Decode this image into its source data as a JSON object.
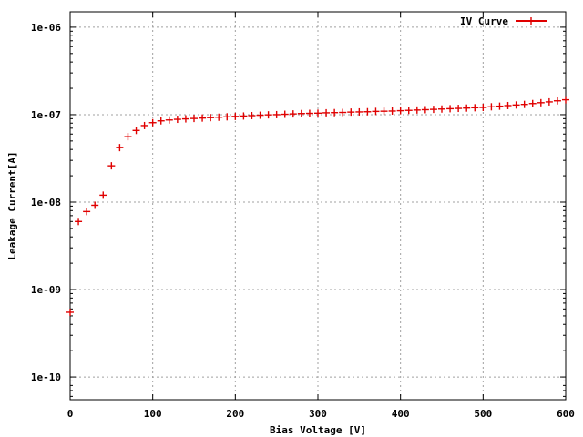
{
  "chart_data": {
    "type": "scatter",
    "xlabel": "Bias Voltage [V]",
    "ylabel": "Leakage Current[A]",
    "x_ticks": [
      "0",
      "100",
      "200",
      "300",
      "400",
      "500",
      "600"
    ],
    "y_ticks": [
      "1e-10",
      "1e-09",
      "1e-08",
      "1e-07",
      "1e-06"
    ],
    "xlim": [
      0,
      600
    ],
    "ylim": [
      5.5e-11,
      1.5e-06
    ],
    "yscale": "log",
    "grid": true,
    "legend_position": "top-right",
    "colors": {
      "series": "#e00000",
      "grid": "#a0a0a0",
      "axis": "#000000"
    },
    "series": [
      {
        "name": "IV Curve",
        "x": [
          0,
          10,
          20,
          30,
          40,
          50,
          60,
          70,
          80,
          90,
          100,
          110,
          120,
          130,
          140,
          150,
          160,
          170,
          180,
          190,
          200,
          210,
          220,
          230,
          240,
          250,
          260,
          270,
          280,
          290,
          300,
          310,
          320,
          330,
          340,
          350,
          360,
          370,
          380,
          390,
          400,
          410,
          420,
          430,
          440,
          450,
          460,
          470,
          480,
          490,
          500,
          510,
          520,
          530,
          540,
          550,
          560,
          570,
          580,
          590,
          600
        ],
        "y": [
          5.5e-10,
          6e-09,
          7.8e-09,
          9.2e-09,
          1.2e-08,
          2.6e-08,
          4.2e-08,
          5.6e-08,
          6.6e-08,
          7.5e-08,
          8.1e-08,
          8.5e-08,
          8.7e-08,
          8.85e-08,
          8.95e-08,
          9.05e-08,
          9.15e-08,
          9.25e-08,
          9.35e-08,
          9.45e-08,
          9.55e-08,
          9.65e-08,
          9.75e-08,
          9.85e-08,
          9.95e-08,
          1e-07,
          1.01e-07,
          1.02e-07,
          1.03e-07,
          1.035e-07,
          1.04e-07,
          1.05e-07,
          1.055e-07,
          1.06e-07,
          1.07e-07,
          1.075e-07,
          1.08e-07,
          1.09e-07,
          1.095e-07,
          1.1e-07,
          1.11e-07,
          1.12e-07,
          1.13e-07,
          1.14e-07,
          1.15e-07,
          1.16e-07,
          1.17e-07,
          1.18e-07,
          1.19e-07,
          1.2e-07,
          1.21e-07,
          1.23e-07,
          1.25e-07,
          1.27e-07,
          1.29e-07,
          1.31e-07,
          1.34e-07,
          1.37e-07,
          1.4e-07,
          1.44e-07,
          1.48e-07
        ]
      }
    ]
  }
}
